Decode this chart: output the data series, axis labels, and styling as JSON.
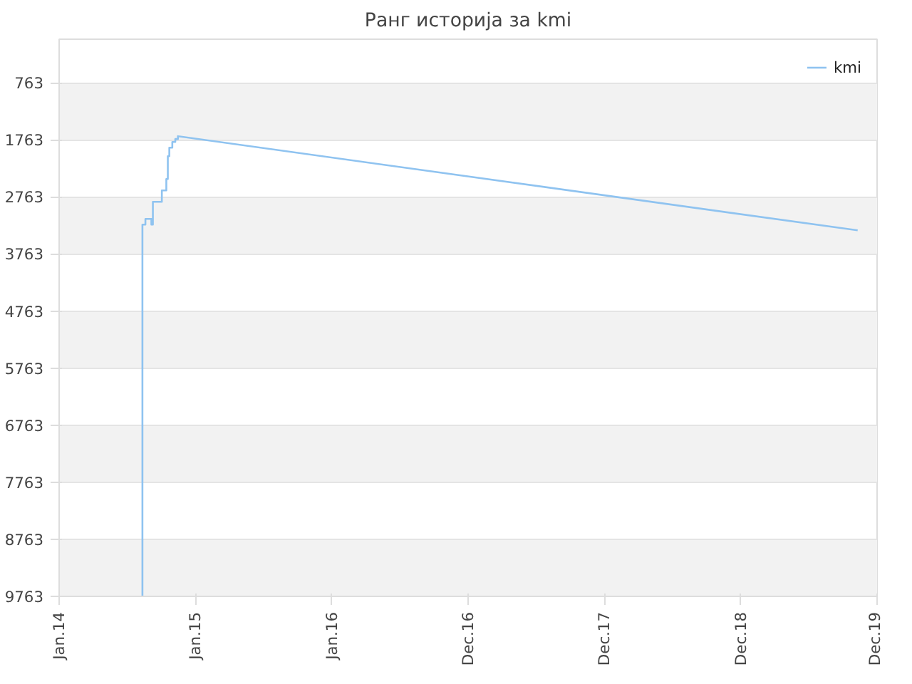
{
  "chart_data": {
    "type": "line",
    "title": "Ранг историја за kmi",
    "x": [
      "2014-08-12",
      "2014-08-12",
      "2014-08-20",
      "2014-08-20",
      "2014-09-05",
      "2014-09-05",
      "2014-09-09",
      "2014-09-09",
      "2014-10-03",
      "2014-10-03",
      "2014-10-15",
      "2014-10-15",
      "2014-10-19",
      "2014-10-19",
      "2014-10-23",
      "2014-10-23",
      "2014-10-31",
      "2014-10-31",
      "2014-11-08",
      "2014-11-08",
      "2014-11-15",
      "2014-11-15",
      "2019-11-09"
    ],
    "series": [
      {
        "name": "kmi",
        "color": "#8fc3f0",
        "values": [
          9763,
          3250,
          3250,
          3150,
          3150,
          3250,
          3250,
          2850,
          2850,
          2650,
          2650,
          2450,
          2450,
          2050,
          2050,
          1900,
          1900,
          1800,
          1800,
          1750,
          1750,
          1700,
          3350
        ]
      }
    ],
    "xlim": [
      "2014-01-01",
      "2019-12-31"
    ],
    "xticks": [
      {
        "value": "2014-01-01",
        "label": "Jan.14"
      },
      {
        "value": "2015-01-01",
        "label": "Jan.15"
      },
      {
        "value": "2016-01-01",
        "label": "Jan.16"
      },
      {
        "value": "2016-12-31",
        "label": "Dec.16"
      },
      {
        "value": "2017-12-31",
        "label": "Dec.17"
      },
      {
        "value": "2018-12-31",
        "label": "Dec.18"
      },
      {
        "value": "2019-12-31",
        "label": "Dec.19"
      }
    ],
    "ylim": [
      9763,
      0
    ],
    "yticks": [
      763,
      1763,
      2763,
      3763,
      4763,
      5763,
      6763,
      7763,
      8763,
      9763
    ],
    "grid": "y",
    "legend": "top right",
    "marker": "none",
    "line_style": "solid"
  }
}
